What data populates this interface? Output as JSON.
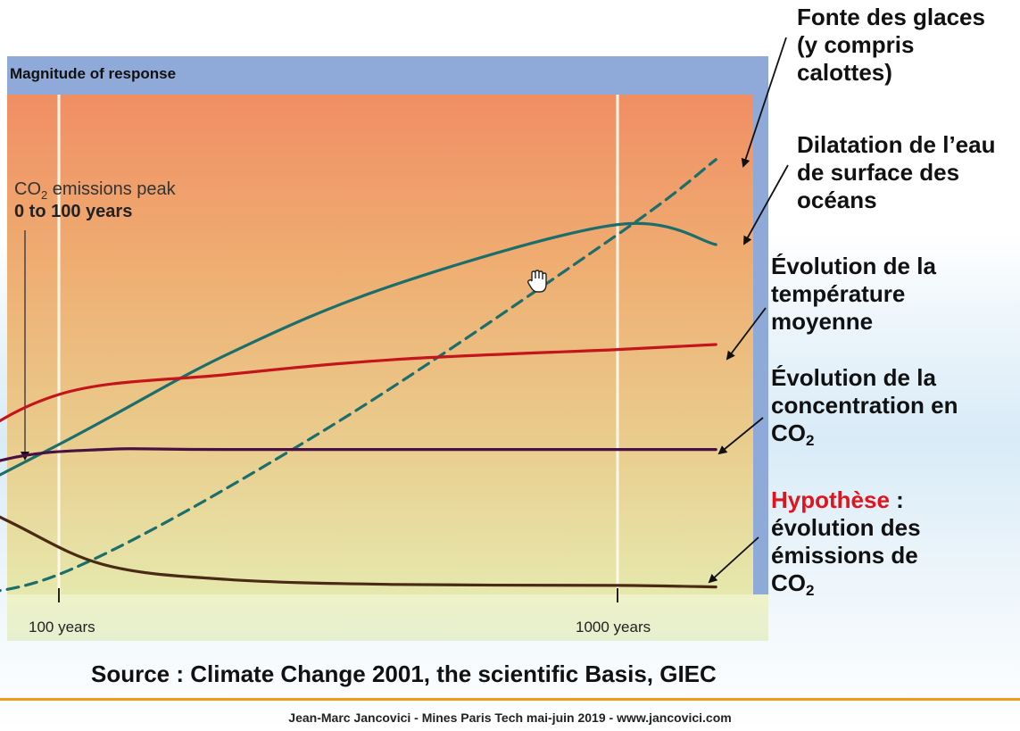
{
  "chart_data": {
    "type": "line",
    "title": "Magnitude of response",
    "xscale": "log",
    "xlabel": "",
    "ylabel": "",
    "x_ticks": [
      "100 years",
      "1000 years"
    ],
    "annotation": {
      "line1_prefix": "CO",
      "line1_sub": "2",
      "line1_suffix": " emissions peak",
      "line2": "0 to 100 years"
    },
    "legend": "right",
    "series": [
      {
        "key": "ice",
        "color": "#1b6e6b",
        "dashed": true,
        "x": [
          55,
          100,
          300,
          1000,
          1500
        ],
        "y": [
          0.0,
          0.04,
          0.33,
          0.72,
          0.87
        ]
      },
      {
        "key": "sea",
        "color": "#1b6e6b",
        "dashed": false,
        "x": [
          30,
          100,
          200,
          400,
          1000,
          1500
        ],
        "y": [
          0.0,
          0.3,
          0.48,
          0.62,
          0.74,
          0.7
        ]
      },
      {
        "key": "temp",
        "color": "#c4141c",
        "dashed": false,
        "x": [
          30,
          60,
          100,
          200,
          400,
          1000,
          1500
        ],
        "y": [
          0.0,
          0.26,
          0.4,
          0.44,
          0.47,
          0.49,
          0.5
        ]
      },
      {
        "key": "co2",
        "color": "#4a1044",
        "dashed": false,
        "x": [
          30,
          50,
          80,
          120,
          200,
          1000,
          1500
        ],
        "y": [
          0.0,
          0.19,
          0.27,
          0.29,
          0.29,
          0.29,
          0.29
        ]
      },
      {
        "key": "emissions",
        "color": "#4a2a14",
        "dashed": false,
        "x": [
          30,
          50,
          80,
          120,
          200,
          400,
          1000,
          1500
        ],
        "y": [
          0.2,
          0.26,
          0.15,
          0.06,
          0.03,
          0.02,
          0.018,
          0.015
        ]
      }
    ]
  },
  "labels": {
    "ice_line1": "Fonte des glaces",
    "ice_line2": "(y compris",
    "ice_line3": "calottes)",
    "sea_line1": "Dilatation de l’eau",
    "sea_line2": "de surface des",
    "sea_line3": "océans",
    "temp_line1": "Évolution de la",
    "temp_line2": "température",
    "temp_line3": "moyenne",
    "co2_line1": "Évolution de la",
    "co2_line2": "concentration en",
    "co2_line3_prefix": "CO",
    "co2_line3_sub": "2",
    "emis_hypothese": "Hypothèse",
    "emis_colon": " :",
    "emis_line2": "évolution des",
    "emis_line3": "émissions de",
    "emis_line4_prefix": "CO",
    "emis_line4_sub": "2"
  },
  "source": "Source : Climate Change 2001, the scientific Basis, GIEC",
  "footer": "Jean-Marc Jancovici - Mines Paris Tech mai-juin 2019 - www.jancovici.com",
  "colors": {
    "frame": "#8fa9d8",
    "plot_top": "#f08e64",
    "plot_bottom": "#e8ecb0",
    "footer_rule": "#f29a1a",
    "hypothese": "#e0141c"
  }
}
